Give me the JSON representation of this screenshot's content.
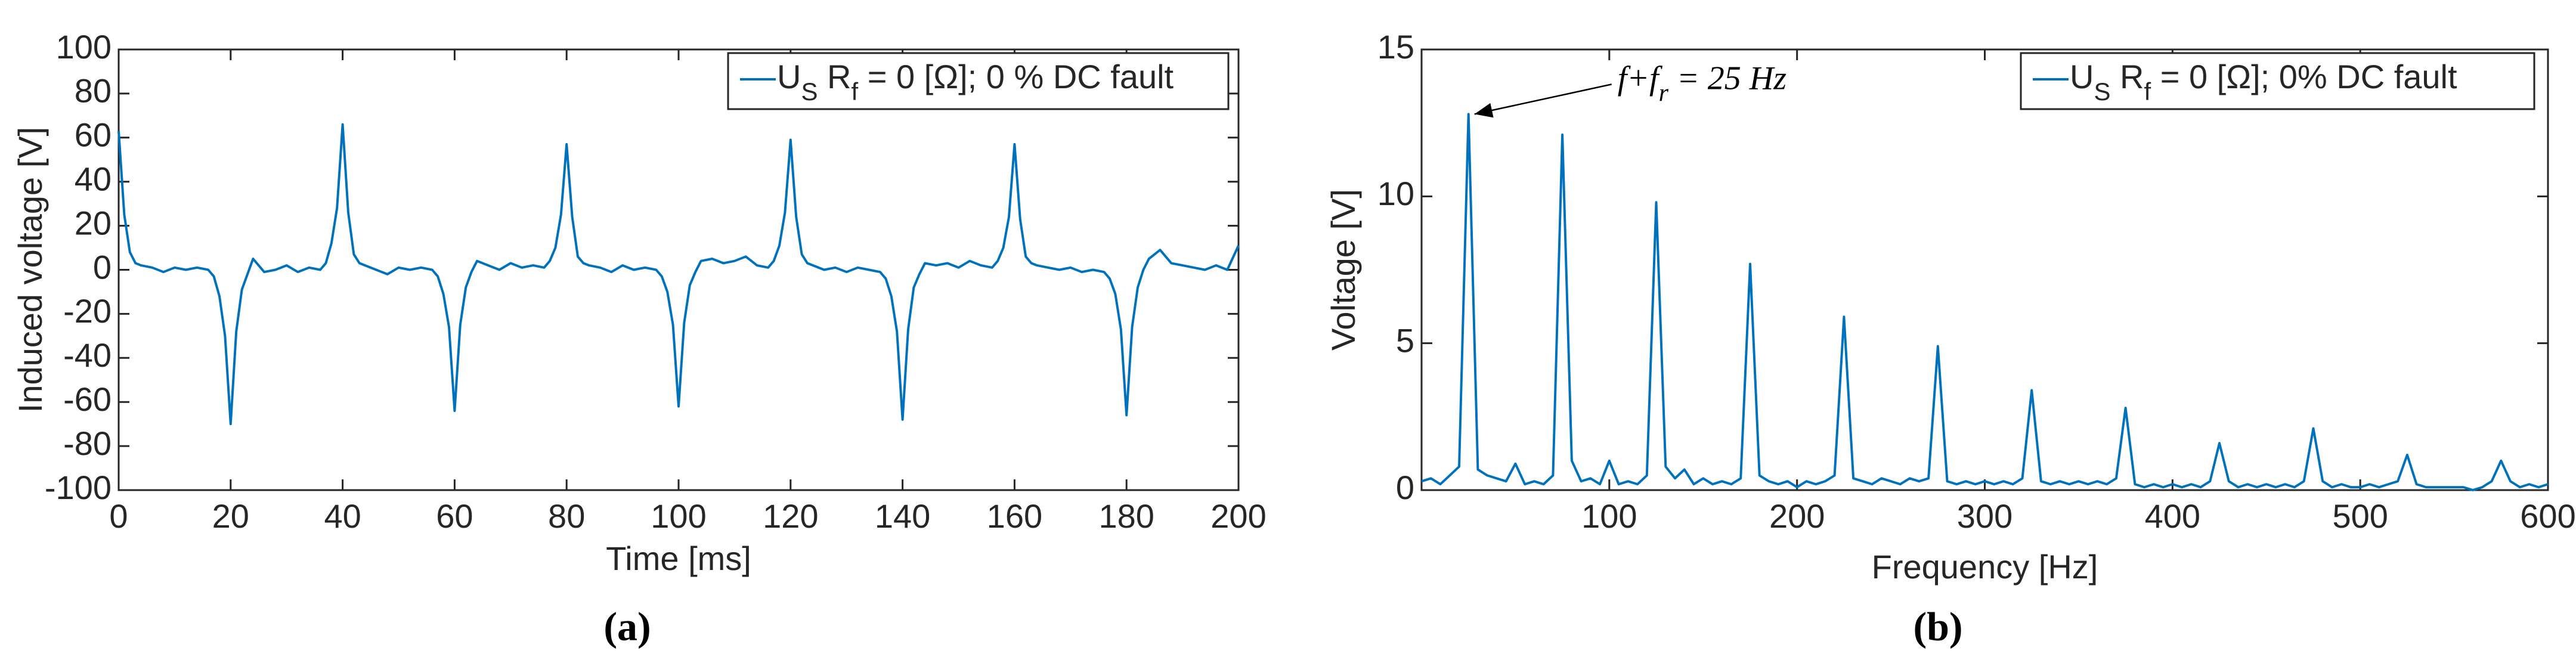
{
  "chart_data": [
    {
      "type": "line",
      "caption": "(a)",
      "xlabel": "Time [ms]",
      "ylabel": "Induced voltage [V]",
      "xlim": [
        0,
        200
      ],
      "ylim": [
        -100,
        100
      ],
      "xticks": [
        0,
        20,
        40,
        60,
        80,
        100,
        120,
        140,
        160,
        180,
        200
      ],
      "yticks": [
        -100,
        -80,
        -60,
        -40,
        -20,
        0,
        20,
        40,
        60,
        80,
        100
      ],
      "legend": "upper right",
      "x": [
        0,
        1,
        2,
        3,
        4,
        6,
        8,
        10,
        12,
        14,
        16,
        17,
        18,
        19,
        20,
        21,
        22,
        23,
        24,
        26,
        28,
        30,
        32,
        34,
        36,
        37,
        38,
        39,
        40,
        41,
        42,
        43,
        44,
        46,
        48,
        50,
        52,
        54,
        56,
        57,
        58,
        59,
        60,
        61,
        62,
        63,
        64,
        66,
        68,
        70,
        72,
        74,
        76,
        77,
        78,
        79,
        80,
        81,
        82,
        83,
        84,
        86,
        88,
        90,
        92,
        94,
        96,
        97,
        98,
        99,
        100,
        101,
        102,
        103,
        104,
        106,
        108,
        110,
        112,
        114,
        116,
        117,
        118,
        119,
        120,
        121,
        122,
        123,
        124,
        126,
        128,
        130,
        132,
        134,
        136,
        137,
        138,
        139,
        140,
        141,
        142,
        143,
        144,
        146,
        148,
        150,
        152,
        154,
        156,
        157,
        158,
        159,
        160,
        161,
        162,
        163,
        164,
        166,
        168,
        170,
        172,
        174,
        176,
        177,
        178,
        179,
        180,
        181,
        182,
        183,
        184,
        186,
        188,
        190,
        192,
        194,
        196,
        198,
        200
      ],
      "series": [
        {
          "name": [
            "U",
            "S",
            " R",
            "f",
            " = 0 [Ω]; 0 % DC fault"
          ],
          "color": "#0072bd",
          "values": [
            63,
            25,
            8,
            3,
            2,
            1,
            -1,
            1,
            0,
            1,
            0,
            -3,
            -12,
            -30,
            -70,
            -28,
            -9,
            -2,
            5,
            -1,
            0,
            2,
            -1,
            1,
            0,
            3,
            12,
            28,
            66,
            26,
            7,
            3,
            2,
            0,
            -2,
            1,
            0,
            1,
            0,
            -3,
            -11,
            -26,
            -64,
            -25,
            -8,
            -1,
            4,
            2,
            0,
            3,
            1,
            2,
            1,
            4,
            10,
            25,
            57,
            24,
            6,
            3,
            2,
            1,
            -1,
            2,
            0,
            1,
            0,
            -3,
            -10,
            -25,
            -62,
            -24,
            -7,
            -1,
            4,
            5,
            3,
            4,
            6,
            2,
            1,
            4,
            11,
            26,
            59,
            24,
            7,
            3,
            2,
            0,
            1,
            -1,
            1,
            0,
            -1,
            -4,
            -12,
            -28,
            -68,
            -27,
            -8,
            -2,
            3,
            2,
            3,
            1,
            4,
            2,
            1,
            4,
            10,
            24,
            57,
            23,
            6,
            3,
            2,
            1,
            0,
            1,
            -1,
            0,
            -1,
            -4,
            -11,
            -27,
            -66,
            -26,
            -8,
            0,
            5,
            9,
            3,
            2,
            1,
            0,
            2,
            0,
            11
          ]
        }
      ]
    },
    {
      "type": "line",
      "caption": "(b)",
      "xlabel": "Frequency [Hz]",
      "ylabel": "Voltage [V]",
      "xlim": [
        0,
        600
      ],
      "ylim": [
        0,
        15
      ],
      "xticks": [
        100,
        200,
        300,
        400,
        500,
        600
      ],
      "yticks": [
        0,
        5,
        10,
        15
      ],
      "legend": "upper right",
      "annotation": [
        "f+f",
        "r",
        " = 25 Hz"
      ],
      "x": [
        0,
        5,
        10,
        15,
        20,
        25,
        30,
        35,
        40,
        45,
        50,
        55,
        60,
        65,
        70,
        75,
        80,
        85,
        90,
        95,
        100,
        105,
        110,
        115,
        120,
        125,
        130,
        135,
        140,
        145,
        150,
        155,
        160,
        165,
        170,
        175,
        180,
        185,
        190,
        195,
        200,
        205,
        210,
        215,
        220,
        225,
        230,
        235,
        240,
        245,
        250,
        255,
        260,
        265,
        270,
        275,
        280,
        285,
        290,
        295,
        300,
        305,
        310,
        315,
        320,
        325,
        330,
        335,
        340,
        345,
        350,
        355,
        360,
        365,
        370,
        375,
        380,
        385,
        390,
        395,
        400,
        405,
        410,
        415,
        420,
        425,
        430,
        435,
        440,
        445,
        450,
        455,
        460,
        465,
        470,
        475,
        480,
        485,
        490,
        495,
        500,
        505,
        510,
        515,
        520,
        525,
        530,
        535,
        540,
        545,
        550,
        555,
        560,
        565,
        570,
        575,
        580,
        585,
        590,
        595,
        600
      ],
      "series": [
        {
          "name": [
            "U",
            "S",
            " R",
            "f",
            " = 0 [Ω]; 0% DC fault"
          ],
          "color": "#0072bd",
          "values": [
            0.3,
            0.4,
            0.2,
            0.5,
            0.8,
            12.8,
            0.7,
            0.5,
            0.4,
            0.3,
            0.9,
            0.2,
            0.3,
            0.2,
            0.5,
            12.1,
            1.0,
            0.3,
            0.4,
            0.2,
            1.0,
            0.2,
            0.3,
            0.2,
            0.5,
            9.8,
            0.8,
            0.4,
            0.7,
            0.2,
            0.4,
            0.2,
            0.3,
            0.2,
            0.4,
            7.7,
            0.5,
            0.3,
            0.2,
            0.3,
            0.1,
            0.3,
            0.2,
            0.3,
            0.5,
            5.9,
            0.4,
            0.3,
            0.2,
            0.4,
            0.3,
            0.2,
            0.4,
            0.3,
            0.4,
            4.9,
            0.3,
            0.2,
            0.3,
            0.2,
            0.3,
            0.2,
            0.3,
            0.2,
            0.4,
            3.4,
            0.3,
            0.2,
            0.3,
            0.2,
            0.3,
            0.2,
            0.3,
            0.2,
            0.4,
            2.8,
            0.2,
            0.1,
            0.2,
            0.1,
            0.2,
            0.1,
            0.2,
            0.1,
            0.3,
            1.6,
            0.3,
            0.1,
            0.2,
            0.1,
            0.2,
            0.1,
            0.2,
            0.1,
            0.3,
            2.1,
            0.3,
            0.1,
            0.2,
            0.1,
            0.1,
            0.2,
            0.1,
            0.2,
            0.3,
            1.2,
            0.2,
            0.1,
            0.1,
            0.1,
            0.1,
            0.1,
            0.0,
            0.1,
            0.3,
            1.0,
            0.3,
            0.1,
            0.2,
            0.1,
            0.2
          ]
        }
      ]
    }
  ]
}
